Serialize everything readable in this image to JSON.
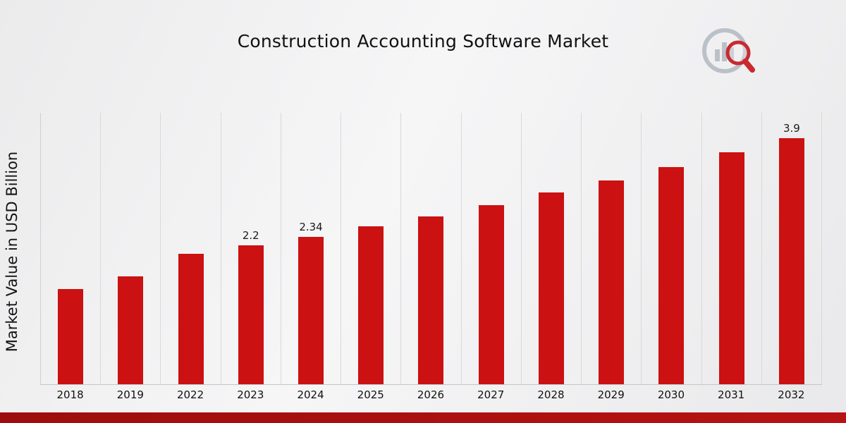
{
  "header": {
    "title": "Construction Accounting Software Market"
  },
  "axis": {
    "ylabel": "Market Value in USD Billion"
  },
  "colors": {
    "bar": "#cb1111",
    "footer_band": "#a60f0f",
    "grid": "#d9d9d9",
    "logo_gray": "#b6bcc4",
    "logo_red": "#c4151c"
  },
  "icons": {
    "logo": "market-research-chart-magnifier-logo"
  },
  "chart_data": {
    "type": "bar",
    "title": "Construction Accounting Software Market",
    "xlabel": "",
    "ylabel": "Market Value in USD Billion",
    "categories": [
      "2018",
      "2019",
      "2022",
      "2023",
      "2024",
      "2025",
      "2026",
      "2027",
      "2028",
      "2029",
      "2030",
      "2031",
      "2032"
    ],
    "values": [
      1.51,
      1.71,
      2.07,
      2.2,
      2.34,
      2.5,
      2.66,
      2.84,
      3.04,
      3.23,
      3.44,
      3.68,
      3.9
    ],
    "labels": [
      "",
      "",
      "",
      "2.2",
      "2.34",
      "",
      "",
      "",
      "",
      "",
      "",
      "",
      "3.9"
    ],
    "ylim": [
      0,
      4.3
    ],
    "grid": "vertical",
    "legend": "none",
    "bar_color": "#cb1111"
  }
}
